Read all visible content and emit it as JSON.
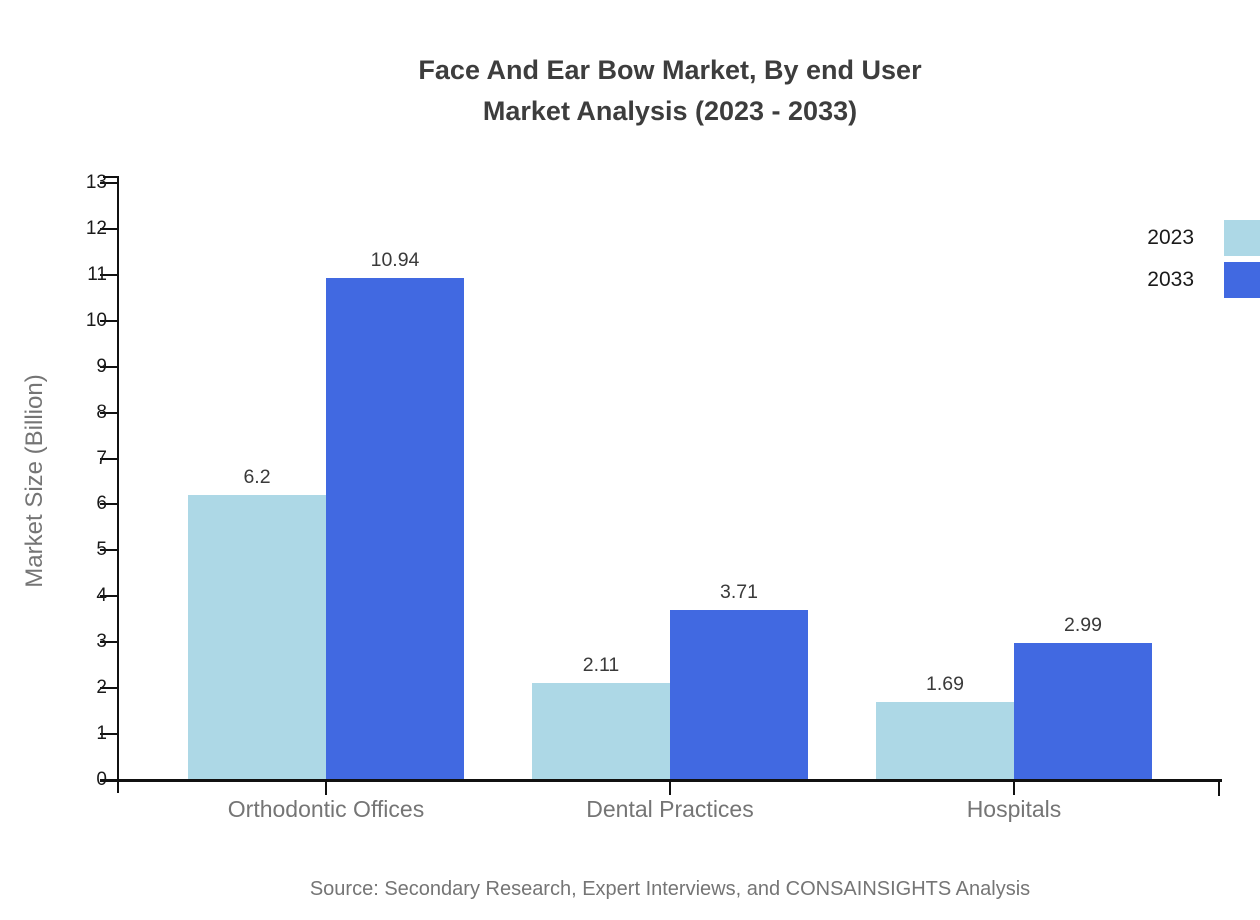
{
  "title": {
    "line1": "Face And Ear Bow Market, By end User",
    "line2": "Market Analysis (2023 - 2033)"
  },
  "footer": {
    "source": "Source: Secondary Research, Expert Interviews, and CONSAINSIGHTS Analysis"
  },
  "chart_data": {
    "type": "bar",
    "title": "Face And Ear Bow Market, By end User Market Analysis (2023 - 2033)",
    "title_lines": [
      "Face And Ear Bow Market, By end User",
      "Market Analysis (2023 - 2033)"
    ],
    "categories": [
      "Orthodontic Offices",
      "Dental Practices",
      "Hospitals"
    ],
    "series": [
      {
        "name": "2023",
        "color": "#ADD8E6",
        "values": [
          6.2,
          2.11,
          1.69
        ],
        "labels": [
          "6.2",
          "2.11",
          "1.69"
        ]
      },
      {
        "name": "2033",
        "color": "#4169E1",
        "values": [
          10.94,
          3.71,
          2.99
        ],
        "labels": [
          "10.94",
          "3.71",
          "2.99"
        ]
      }
    ],
    "xlabel": "",
    "ylabel": "Market Size (Billion)",
    "ylim": [
      0,
      13
    ],
    "yticks": [
      0,
      1,
      2,
      3,
      4,
      5,
      6,
      7,
      8,
      9,
      10,
      11,
      12,
      13
    ],
    "grid": false,
    "legend_position": "top-right",
    "colors": {
      "axis": "#111111",
      "title_text": "#3d3d3d",
      "tick_label": "#1a1a1a",
      "category_label": "#757575",
      "data_label": "#3a3a3a",
      "source_text": "#757575"
    }
  }
}
